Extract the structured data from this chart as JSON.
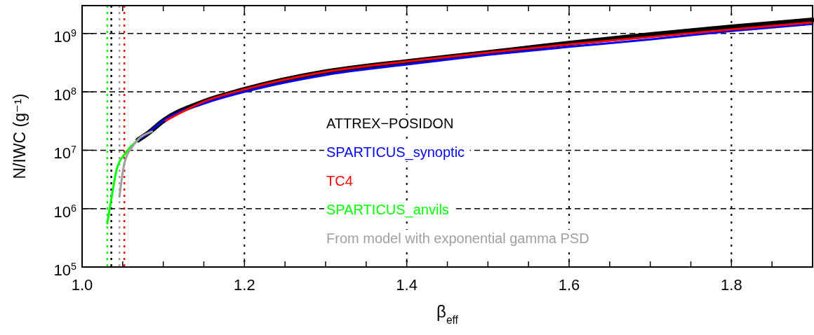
{
  "chart_data": {
    "type": "line",
    "xlabel": "β$_{eff}$",
    "ylabel": "N/IWC (g⁻¹)",
    "log": "y",
    "grid": true,
    "legend": "bottom",
    "line_style": "solid",
    "marker": "none",
    "xlim": [
      1.0,
      1.9
    ],
    "ylim": [
      100000,
      3000000000
    ],
    "xticks": [
      {
        "value": 1.0,
        "label": "1.0"
      },
      {
        "value": 1.05,
        "label": null
      },
      {
        "value": 1.1,
        "label": null
      },
      {
        "value": 1.15,
        "label": null
      },
      {
        "value": 1.2,
        "label": "1.2"
      },
      {
        "value": 1.25,
        "label": null
      },
      {
        "value": 1.3,
        "label": null
      },
      {
        "value": 1.35,
        "label": null
      },
      {
        "value": 1.4,
        "label": "1.4"
      },
      {
        "value": 1.45,
        "label": null
      },
      {
        "value": 1.5,
        "label": null
      },
      {
        "value": 1.55,
        "label": null
      },
      {
        "value": 1.6,
        "label": "1.6"
      },
      {
        "value": 1.65,
        "label": null
      },
      {
        "value": 1.7,
        "label": null
      },
      {
        "value": 1.75,
        "label": null
      },
      {
        "value": 1.8,
        "label": "1.8"
      },
      {
        "value": 1.85,
        "label": null
      }
    ],
    "yticks": [
      {
        "value": 100000,
        "label": "10$^{5}$"
      },
      {
        "value": 1000000,
        "label": "10$^{6}$"
      },
      {
        "value": 10000000,
        "label": "10$^{7}$"
      },
      {
        "value": 100000000,
        "label": "10$^{8}$"
      },
      {
        "value": 1000000000,
        "label": "10$^{9}$"
      }
    ],
    "series": [
      {
        "name": "ATTREX−POSIDON",
        "color": "#000000",
        "x": [
          1.069,
          1.08,
          1.1,
          1.15,
          1.2,
          1.3,
          1.4,
          1.5,
          1.6,
          1.7,
          1.8,
          1.9
        ],
        "values": [
          15000000,
          19000000,
          32000000,
          68000000,
          110000000,
          220000000,
          330000000,
          470000000,
          680000000,
          950000000,
          1290000000,
          1700000000
        ]
      },
      {
        "name": "SPARTICUS_synoptic",
        "color": "#0000ff",
        "x": [
          1.069,
          1.08,
          1.1,
          1.15,
          1.2,
          1.3,
          1.4,
          1.5,
          1.6,
          1.7,
          1.8,
          1.9
        ],
        "values": [
          15000000,
          19000000,
          32000000,
          63000000,
          100000000,
          195000000,
          295000000,
          430000000,
          590000000,
          790000000,
          1100000000,
          1450000000
        ]
      },
      {
        "name": "TC4",
        "color": "#ff0000",
        "x": [
          1.103,
          1.15,
          1.2,
          1.3,
          1.4,
          1.5,
          1.6,
          1.7,
          1.8,
          1.9
        ],
        "values": [
          32000000,
          68000000,
          110000000,
          220000000,
          330000000,
          470000000,
          650000000,
          870000000,
          1170000000,
          1550000000
        ]
      },
      {
        "name": "SPARTICUS_anvils",
        "color": "#00ff00",
        "x": [
          1.031,
          1.035,
          1.043,
          1.054,
          1.069
        ],
        "values": [
          560000,
          1200000,
          4900000,
          9100000,
          15000000
        ]
      },
      {
        "name": "From model with exponential gamma PSD",
        "color": "#a0a0a0",
        "x": [
          1.046,
          1.052,
          1.063,
          1.086
        ],
        "values": [
          1600000,
          5900000,
          12000000,
          21000000
        ]
      }
    ],
    "ref_lines": [
      {
        "axis": "x",
        "value": 1.031,
        "color": "#00ff00",
        "line_style": "dotted"
      },
      {
        "axis": "x",
        "value": 1.036,
        "color": "#000000",
        "line_style": "dotted"
      },
      {
        "axis": "x",
        "value": 1.046,
        "color": "#a0a0a0",
        "line_style": "dotted"
      },
      {
        "axis": "x",
        "value": 1.052,
        "color": "#ff0000",
        "line_style": "dotted"
      }
    ]
  }
}
